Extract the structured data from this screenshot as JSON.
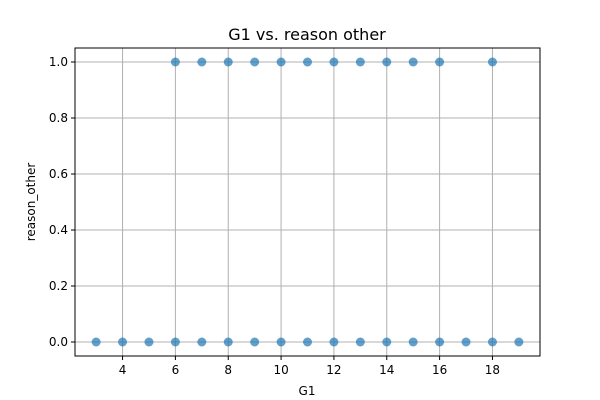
{
  "chart_data": {
    "type": "scatter",
    "title": "G1 vs. reason other",
    "xlabel": "G1",
    "ylabel": "reason_other",
    "xlim": [
      2.2,
      19.8
    ],
    "ylim": [
      -0.05,
      1.05
    ],
    "xticks": [
      4,
      6,
      8,
      10,
      12,
      14,
      16,
      18
    ],
    "yticks": [
      0.0,
      0.2,
      0.4,
      0.6,
      0.8,
      1.0
    ],
    "grid": true,
    "point_color": "#1f77b4",
    "series": [
      {
        "points": [
          [
            6,
            1
          ],
          [
            7,
            1
          ],
          [
            8,
            1
          ],
          [
            9,
            1
          ],
          [
            10,
            1
          ],
          [
            11,
            1
          ],
          [
            12,
            1
          ],
          [
            13,
            1
          ],
          [
            14,
            1
          ],
          [
            15,
            1
          ],
          [
            16,
            1
          ],
          [
            18,
            1
          ],
          [
            3,
            0
          ],
          [
            4,
            0
          ],
          [
            5,
            0
          ],
          [
            6,
            0
          ],
          [
            7,
            0
          ],
          [
            8,
            0
          ],
          [
            9,
            0
          ],
          [
            10,
            0
          ],
          [
            11,
            0
          ],
          [
            12,
            0
          ],
          [
            13,
            0
          ],
          [
            14,
            0
          ],
          [
            15,
            0
          ],
          [
            16,
            0
          ],
          [
            17,
            0
          ],
          [
            18,
            0
          ],
          [
            19,
            0
          ]
        ]
      }
    ]
  }
}
